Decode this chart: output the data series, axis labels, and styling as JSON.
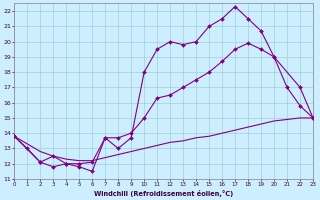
{
  "xlabel": "Windchill (Refroidissement éolien,°C)",
  "bg_color": "#cceeff",
  "line_color": "#800080",
  "xlim": [
    0,
    23
  ],
  "ylim": [
    11,
    22.5
  ],
  "yticks": [
    11,
    12,
    13,
    14,
    15,
    16,
    17,
    18,
    19,
    20,
    21,
    22
  ],
  "xticks": [
    0,
    1,
    2,
    3,
    4,
    5,
    6,
    7,
    8,
    9,
    10,
    11,
    12,
    13,
    14,
    15,
    16,
    17,
    18,
    19,
    20,
    21,
    22,
    23
  ],
  "series_A_x": [
    0,
    1,
    2,
    3,
    4,
    5,
    6,
    7,
    8,
    9,
    10,
    11,
    12,
    13,
    14,
    15,
    16,
    17,
    18,
    19,
    20,
    21,
    22,
    23
  ],
  "series_A_y": [
    13.8,
    13.0,
    12.1,
    11.8,
    12.0,
    11.8,
    11.5,
    13.7,
    13.0,
    13.7,
    18.0,
    19.5,
    20.0,
    19.8,
    20.0,
    21.0,
    21.5,
    22.3,
    21.5,
    20.7,
    19.0,
    17.0,
    15.8,
    15.0
  ],
  "series_B_x": [
    0,
    2,
    3,
    4,
    5,
    6,
    7,
    8,
    9,
    10,
    11,
    12,
    13,
    14,
    15,
    16,
    17,
    18,
    19,
    20,
    22,
    23
  ],
  "series_B_y": [
    13.8,
    12.1,
    12.5,
    12.0,
    12.0,
    12.1,
    13.7,
    13.7,
    14.0,
    15.0,
    16.3,
    16.5,
    17.0,
    17.5,
    18.0,
    18.7,
    19.5,
    19.9,
    19.5,
    19.0,
    17.0,
    15.0
  ],
  "series_C_x": [
    0,
    1,
    2,
    3,
    4,
    5,
    6,
    7,
    8,
    9,
    10,
    11,
    12,
    13,
    14,
    15,
    16,
    17,
    18,
    19,
    20,
    21,
    22,
    23
  ],
  "series_C_y": [
    13.8,
    13.3,
    12.8,
    12.5,
    12.3,
    12.2,
    12.2,
    12.4,
    12.6,
    12.8,
    13.0,
    13.2,
    13.4,
    13.5,
    13.7,
    13.8,
    14.0,
    14.2,
    14.4,
    14.6,
    14.8,
    14.9,
    15.0,
    15.0
  ]
}
